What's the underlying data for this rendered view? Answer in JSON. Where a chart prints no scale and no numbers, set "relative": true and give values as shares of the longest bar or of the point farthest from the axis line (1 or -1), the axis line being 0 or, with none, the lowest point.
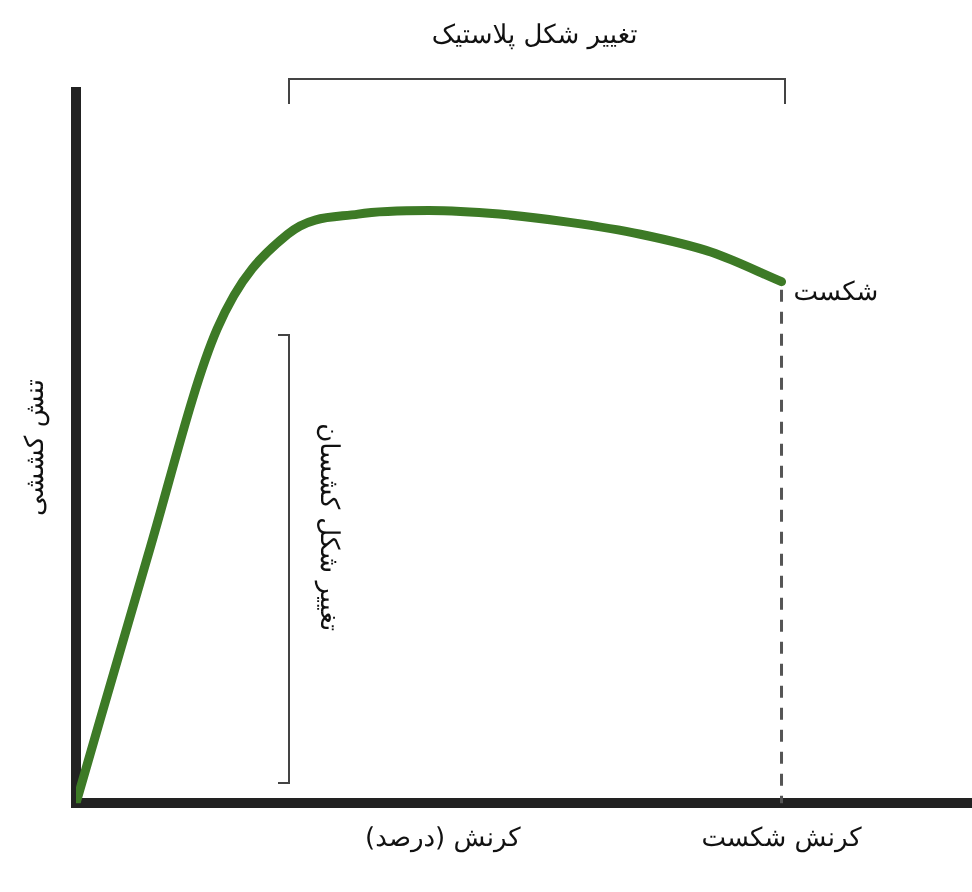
{
  "chart_data": {
    "type": "line",
    "relative": true,
    "xlabel": "کرنش (درصد)",
    "ylabel": "تنش کششی",
    "categories": [
      null,
      null,
      null,
      null,
      null,
      null,
      null,
      null,
      null,
      null,
      null
    ],
    "series": [
      {
        "color": "#3d7a26",
        "values": [
          0,
          0.41,
          0.8,
          0.96,
          0.994,
          1,
          0.994,
          0.98,
          0.96,
          0.93,
          0.88
        ]
      }
    ],
    "annotations": [
      "تغییر شکل پلاستیک",
      "تغییر شکل کشسان",
      "شکست",
      "کرنش شکست"
    ],
    "marker": "none",
    "grid": false,
    "legend": false
  }
}
